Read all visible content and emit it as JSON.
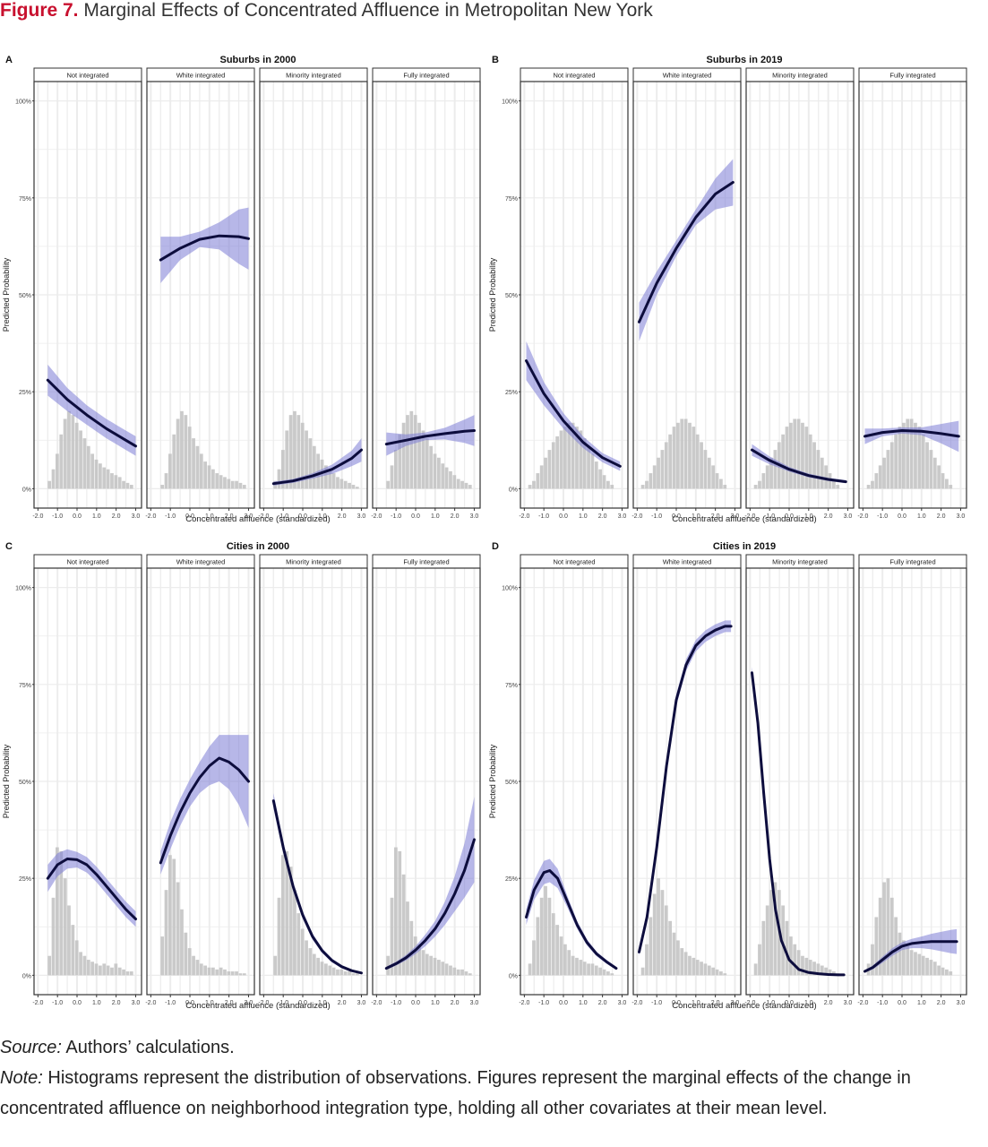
{
  "figure": {
    "label": "Figure 7.",
    "title": "Marginal Effects of Concentrated Affluence in Metropolitan New York"
  },
  "notes": {
    "source_label": "Source:",
    "source_text": "Authors’ calculations.",
    "note_label": "Note:",
    "note_text": "Histograms represent the distribution of observations. Figures represent the marginal effects of the change in concentrated affluence on neighborhood integration type, holding all other covariates at their mean level."
  },
  "colors": {
    "line": "#0d0d3d",
    "ribbon": "#7b7bd6",
    "histogram": "#c4c4c4",
    "gridline": "#ececec",
    "strip_fill": "#ffffff"
  },
  "chart_data": [
    {
      "panel": "A",
      "title": "Suburbs in 2000",
      "type": "line",
      "xlabel": "Concentrated affluence (standardized)",
      "ylabel": "Predicted Probability",
      "xlim": [
        -2.2,
        3.3
      ],
      "ylim": [
        -0.05,
        1.05
      ],
      "x_ticks": [
        "-2.0",
        "-1.0",
        "0.0",
        "1.0",
        "2.0",
        "3.0"
      ],
      "y_ticks": [
        "0%",
        "25%",
        "50%",
        "75%",
        "100%"
      ],
      "facets": [
        {
          "name": "Not integrated",
          "x": [
            -1.5,
            -0.5,
            0.5,
            1.5,
            2.5,
            3.0
          ],
          "y": [
            0.28,
            0.23,
            0.19,
            0.155,
            0.125,
            0.11
          ],
          "ci_width": [
            0.04,
            0.03,
            0.025,
            0.025,
            0.025,
            0.025
          ],
          "hist_start": -1.5,
          "hist": [
            0.02,
            0.05,
            0.09,
            0.14,
            0.18,
            0.2,
            0.19,
            0.17,
            0.15,
            0.13,
            0.11,
            0.09,
            0.075,
            0.065,
            0.055,
            0.05,
            0.04,
            0.035,
            0.03,
            0.02,
            0.015,
            0.01
          ]
        },
        {
          "name": "White integrated",
          "x": [
            -1.5,
            -0.5,
            0.5,
            1.5,
            2.5,
            3.0
          ],
          "y": [
            0.59,
            0.62,
            0.643,
            0.652,
            0.65,
            0.645
          ],
          "ci_width": [
            0.06,
            0.03,
            0.02,
            0.035,
            0.07,
            0.08
          ],
          "hist_start": -1.5,
          "hist": [
            0.01,
            0.04,
            0.09,
            0.14,
            0.18,
            0.2,
            0.19,
            0.16,
            0.13,
            0.11,
            0.09,
            0.07,
            0.06,
            0.05,
            0.04,
            0.035,
            0.03,
            0.025,
            0.02,
            0.02,
            0.015,
            0.01
          ]
        },
        {
          "name": "Minority integrated",
          "x": [
            -1.5,
            -0.5,
            0.5,
            1.5,
            2.5,
            3.0
          ],
          "y": [
            0.013,
            0.02,
            0.033,
            0.05,
            0.078,
            0.1
          ],
          "ci_width": [
            0.005,
            0.005,
            0.007,
            0.012,
            0.02,
            0.03
          ],
          "hist_start": -1.5,
          "hist": [
            0.02,
            0.05,
            0.1,
            0.15,
            0.19,
            0.2,
            0.19,
            0.17,
            0.15,
            0.13,
            0.11,
            0.09,
            0.075,
            0.06,
            0.05,
            0.04,
            0.03,
            0.025,
            0.02,
            0.015,
            0.01,
            0.005
          ]
        },
        {
          "name": "Fully integrated",
          "x": [
            -1.5,
            -0.5,
            0.5,
            1.5,
            2.5,
            3.0
          ],
          "y": [
            0.115,
            0.125,
            0.135,
            0.142,
            0.148,
            0.15
          ],
          "ci_width": [
            0.03,
            0.015,
            0.01,
            0.015,
            0.03,
            0.04
          ],
          "hist_start": -1.5,
          "hist": [
            0.02,
            0.06,
            0.1,
            0.14,
            0.17,
            0.19,
            0.2,
            0.19,
            0.17,
            0.15,
            0.13,
            0.11,
            0.09,
            0.08,
            0.065,
            0.055,
            0.045,
            0.035,
            0.025,
            0.02,
            0.015,
            0.01
          ]
        }
      ]
    },
    {
      "panel": "B",
      "title": "Suburbs in 2019",
      "type": "line",
      "xlabel": "Concentrated affluence (standardized)",
      "ylabel": "Predicted Probability",
      "xlim": [
        -2.2,
        3.3
      ],
      "ylim": [
        -0.05,
        1.05
      ],
      "x_ticks": [
        "-2.0",
        "-1.0",
        "0.0",
        "1.0",
        "2.0",
        "3.0"
      ],
      "y_ticks": [
        "0%",
        "25%",
        "50%",
        "75%",
        "100%"
      ],
      "facets": [
        {
          "name": "Not integrated",
          "x": [
            -1.9,
            -1.0,
            0.0,
            1.0,
            2.0,
            2.9
          ],
          "y": [
            0.33,
            0.245,
            0.175,
            0.12,
            0.08,
            0.058
          ],
          "ci_width": [
            0.05,
            0.03,
            0.02,
            0.015,
            0.012,
            0.012
          ],
          "hist_start": -1.8,
          "hist": [
            0.01,
            0.02,
            0.04,
            0.06,
            0.08,
            0.1,
            0.12,
            0.135,
            0.15,
            0.16,
            0.17,
            0.17,
            0.16,
            0.15,
            0.13,
            0.11,
            0.09,
            0.07,
            0.05,
            0.035,
            0.02,
            0.01
          ]
        },
        {
          "name": "White integrated",
          "x": [
            -1.9,
            -1.0,
            0.0,
            1.0,
            2.0,
            2.9
          ],
          "y": [
            0.43,
            0.53,
            0.62,
            0.7,
            0.76,
            0.79
          ],
          "ci_width": [
            0.05,
            0.03,
            0.02,
            0.02,
            0.04,
            0.06
          ],
          "hist_start": -1.8,
          "hist": [
            0.01,
            0.02,
            0.04,
            0.06,
            0.08,
            0.1,
            0.12,
            0.14,
            0.16,
            0.17,
            0.18,
            0.18,
            0.17,
            0.16,
            0.14,
            0.12,
            0.1,
            0.08,
            0.06,
            0.04,
            0.025,
            0.01
          ]
        },
        {
          "name": "Minority integrated",
          "x": [
            -1.9,
            -1.0,
            0.0,
            1.0,
            2.0,
            2.9
          ],
          "y": [
            0.1,
            0.073,
            0.05,
            0.034,
            0.024,
            0.018
          ],
          "ci_width": [
            0.015,
            0.01,
            0.006,
            0.005,
            0.004,
            0.004
          ],
          "hist_start": -1.8,
          "hist": [
            0.01,
            0.02,
            0.04,
            0.06,
            0.08,
            0.1,
            0.12,
            0.14,
            0.16,
            0.17,
            0.18,
            0.18,
            0.17,
            0.16,
            0.14,
            0.12,
            0.1,
            0.08,
            0.06,
            0.04,
            0.025,
            0.01
          ]
        },
        {
          "name": "Fully integrated",
          "x": [
            -1.9,
            -1.0,
            0.0,
            1.0,
            2.0,
            2.9
          ],
          "y": [
            0.135,
            0.145,
            0.15,
            0.148,
            0.142,
            0.135
          ],
          "ci_width": [
            0.02,
            0.01,
            0.008,
            0.01,
            0.025,
            0.04
          ],
          "hist_start": -1.8,
          "hist": [
            0.01,
            0.02,
            0.04,
            0.06,
            0.08,
            0.1,
            0.12,
            0.14,
            0.16,
            0.17,
            0.18,
            0.18,
            0.17,
            0.16,
            0.14,
            0.12,
            0.1,
            0.08,
            0.06,
            0.04,
            0.025,
            0.01
          ]
        }
      ]
    },
    {
      "panel": "C",
      "title": "Cities in 2000",
      "type": "line",
      "xlabel": "Concentrated affluence (standardized)",
      "ylabel": "Predicted Probability",
      "xlim": [
        -2.2,
        3.3
      ],
      "ylim": [
        -0.05,
        1.05
      ],
      "x_ticks": [
        "-2.0",
        "-1.0",
        "0.0",
        "1.0",
        "2.0",
        "3.0"
      ],
      "y_ticks": [
        "0%",
        "25%",
        "50%",
        "75%",
        "100%"
      ],
      "facets": [
        {
          "name": "Not integrated",
          "x": [
            -1.5,
            -1.0,
            -0.5,
            0.0,
            0.5,
            1.0,
            1.5,
            2.0,
            2.5,
            3.0
          ],
          "y": [
            0.25,
            0.285,
            0.3,
            0.298,
            0.285,
            0.26,
            0.23,
            0.2,
            0.17,
            0.145
          ],
          "ci_width": [
            0.035,
            0.03,
            0.025,
            0.02,
            0.02,
            0.02,
            0.02,
            0.02,
            0.02,
            0.02
          ],
          "hist_start": -1.5,
          "hist": [
            0.05,
            0.2,
            0.33,
            0.32,
            0.25,
            0.18,
            0.13,
            0.09,
            0.06,
            0.05,
            0.04,
            0.035,
            0.03,
            0.025,
            0.03,
            0.025,
            0.02,
            0.03,
            0.02,
            0.015,
            0.01,
            0.01
          ]
        },
        {
          "name": "White integrated",
          "x": [
            -1.5,
            -1.0,
            -0.5,
            0.0,
            0.5,
            1.0,
            1.5,
            2.0,
            2.5,
            3.0
          ],
          "y": [
            0.29,
            0.36,
            0.42,
            0.47,
            0.51,
            0.54,
            0.56,
            0.55,
            0.53,
            0.5
          ],
          "ci_width": [
            0.03,
            0.035,
            0.035,
            0.035,
            0.04,
            0.05,
            0.06,
            0.07,
            0.09,
            0.12
          ],
          "hist_start": -1.5,
          "hist": [
            0.1,
            0.22,
            0.31,
            0.3,
            0.24,
            0.17,
            0.11,
            0.07,
            0.05,
            0.04,
            0.03,
            0.025,
            0.02,
            0.02,
            0.015,
            0.02,
            0.015,
            0.01,
            0.01,
            0.01,
            0.005,
            0.005
          ]
        },
        {
          "name": "Minority integrated",
          "x": [
            -1.5,
            -1.0,
            -0.5,
            0.0,
            0.5,
            1.0,
            1.5,
            2.0,
            2.5,
            3.0
          ],
          "y": [
            0.45,
            0.33,
            0.23,
            0.155,
            0.1,
            0.063,
            0.038,
            0.022,
            0.012,
            0.006
          ],
          "ci_width": [
            0.02,
            0.015,
            0.012,
            0.01,
            0.008,
            0.006,
            0.005,
            0.004,
            0.003,
            0.002
          ],
          "hist_start": -1.5,
          "hist": [
            0.05,
            0.2,
            0.31,
            0.32,
            0.28,
            0.22,
            0.16,
            0.12,
            0.09,
            0.07,
            0.055,
            0.045,
            0.035,
            0.03,
            0.025,
            0.02,
            0.015,
            0.015,
            0.01,
            0.01,
            0.005,
            0.005
          ]
        },
        {
          "name": "Fully integrated",
          "x": [
            -1.5,
            -1.0,
            -0.5,
            0.0,
            0.5,
            1.0,
            1.5,
            2.0,
            2.5,
            3.0
          ],
          "y": [
            0.018,
            0.03,
            0.045,
            0.065,
            0.09,
            0.12,
            0.16,
            0.21,
            0.27,
            0.35
          ],
          "ci_width": [
            0.004,
            0.005,
            0.007,
            0.01,
            0.015,
            0.02,
            0.03,
            0.045,
            0.07,
            0.11
          ],
          "hist_start": -1.5,
          "hist": [
            0.05,
            0.2,
            0.33,
            0.32,
            0.26,
            0.19,
            0.14,
            0.1,
            0.08,
            0.065,
            0.055,
            0.05,
            0.045,
            0.04,
            0.035,
            0.03,
            0.025,
            0.02,
            0.015,
            0.015,
            0.01,
            0.005
          ]
        }
      ]
    },
    {
      "panel": "D",
      "title": "Cities in 2019",
      "type": "line",
      "xlabel": "Concentrated affluence (standardized)",
      "ylabel": "Predicted Probability",
      "xlim": [
        -2.2,
        3.3
      ],
      "ylim": [
        -0.05,
        1.05
      ],
      "x_ticks": [
        "-2.0",
        "-1.0",
        "0.0",
        "1.0",
        "2.0",
        "3.0"
      ],
      "y_ticks": [
        "0%",
        "25%",
        "50%",
        "75%",
        "100%"
      ],
      "facets": [
        {
          "name": "Not integrated",
          "x": [
            -1.9,
            -1.5,
            -1.0,
            -0.7,
            -0.3,
            0.2,
            0.7,
            1.2,
            1.7,
            2.2,
            2.7
          ],
          "y": [
            0.15,
            0.22,
            0.265,
            0.27,
            0.25,
            0.19,
            0.13,
            0.085,
            0.055,
            0.035,
            0.018
          ],
          "ci_width": [
            0.02,
            0.025,
            0.03,
            0.03,
            0.025,
            0.015,
            0.01,
            0.008,
            0.006,
            0.005,
            0.004
          ],
          "hist_start": -1.8,
          "hist": [
            0.03,
            0.09,
            0.15,
            0.2,
            0.23,
            0.2,
            0.16,
            0.13,
            0.1,
            0.08,
            0.065,
            0.05,
            0.045,
            0.04,
            0.035,
            0.03,
            0.03,
            0.025,
            0.02,
            0.015,
            0.01,
            0.005
          ]
        },
        {
          "name": "White integrated",
          "x": [
            -1.9,
            -1.5,
            -1.0,
            -0.5,
            0.0,
            0.5,
            1.0,
            1.5,
            2.0,
            2.5,
            2.8
          ],
          "y": [
            0.06,
            0.15,
            0.33,
            0.54,
            0.71,
            0.8,
            0.85,
            0.875,
            0.89,
            0.9,
            0.9
          ],
          "ci_width": [
            0.01,
            0.015,
            0.02,
            0.02,
            0.015,
            0.015,
            0.015,
            0.015,
            0.015,
            0.015,
            0.015
          ],
          "hist_start": -1.8,
          "hist": [
            0.02,
            0.08,
            0.15,
            0.21,
            0.25,
            0.22,
            0.18,
            0.14,
            0.11,
            0.09,
            0.07,
            0.06,
            0.05,
            0.045,
            0.04,
            0.035,
            0.03,
            0.025,
            0.02,
            0.015,
            0.01,
            0.005
          ]
        },
        {
          "name": "Minority integrated",
          "x": [
            -1.9,
            -1.6,
            -1.3,
            -1.0,
            -0.7,
            -0.4,
            0.0,
            0.5,
            1.0,
            1.5,
            2.0,
            2.5,
            2.8
          ],
          "y": [
            0.78,
            0.65,
            0.47,
            0.3,
            0.17,
            0.09,
            0.04,
            0.015,
            0.007,
            0.004,
            0.002,
            0.001,
            0.001
          ],
          "ci_width": [
            0.015,
            0.015,
            0.015,
            0.012,
            0.01,
            0.008,
            0.005,
            0.003,
            0.002,
            0.001,
            0.001,
            0.001,
            0.001
          ],
          "hist_start": -1.8,
          "hist": [
            0.03,
            0.08,
            0.14,
            0.18,
            0.22,
            0.24,
            0.22,
            0.18,
            0.14,
            0.1,
            0.08,
            0.065,
            0.05,
            0.045,
            0.04,
            0.035,
            0.03,
            0.025,
            0.02,
            0.015,
            0.01,
            0.005
          ]
        },
        {
          "name": "Fully integrated",
          "x": [
            -1.9,
            -1.5,
            -1.0,
            -0.5,
            0.0,
            0.5,
            1.0,
            1.5,
            2.0,
            2.5,
            2.8
          ],
          "y": [
            0.01,
            0.02,
            0.04,
            0.06,
            0.075,
            0.082,
            0.085,
            0.087,
            0.087,
            0.087,
            0.087
          ],
          "ci_width": [
            0.003,
            0.005,
            0.008,
            0.01,
            0.01,
            0.012,
            0.015,
            0.02,
            0.025,
            0.03,
            0.032
          ],
          "hist_start": -1.8,
          "hist": [
            0.03,
            0.08,
            0.15,
            0.2,
            0.24,
            0.25,
            0.2,
            0.15,
            0.11,
            0.09,
            0.075,
            0.065,
            0.06,
            0.055,
            0.05,
            0.045,
            0.04,
            0.035,
            0.025,
            0.02,
            0.015,
            0.01
          ]
        }
      ]
    }
  ]
}
